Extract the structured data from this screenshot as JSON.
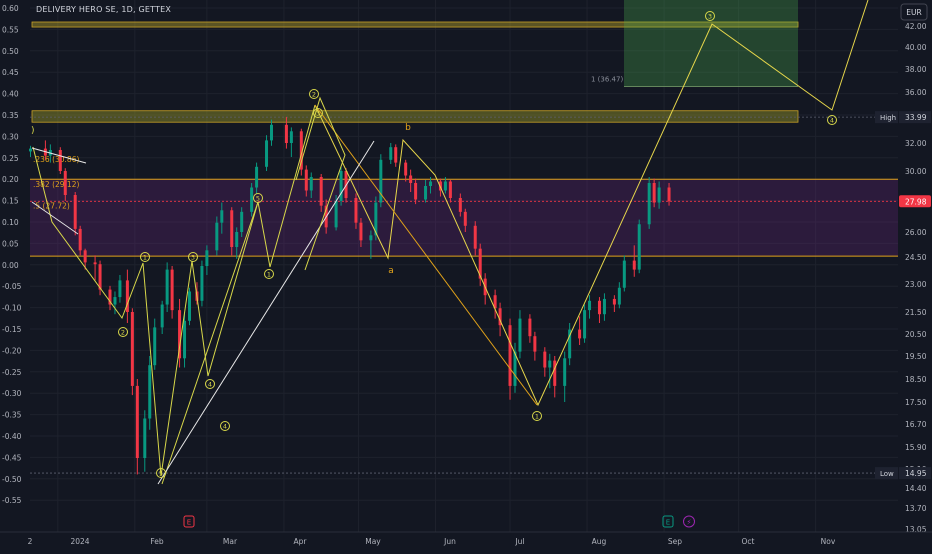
{
  "header": {
    "title": "DELIVERY HERO SE, 1D, GETTEX"
  },
  "axis": {
    "currency": "EUR",
    "left_ticks": [
      "0.60",
      "0.55",
      "0.50",
      "0.45",
      "0.40",
      "0.35",
      "0.30",
      "0.25",
      "0.20",
      "0.15",
      "0.10",
      "0.05",
      "0.00",
      "-0.05",
      "-0.10",
      "-0.15",
      "-0.20",
      "-0.25",
      "-0.30",
      "-0.35",
      "-0.40",
      "-0.45",
      "-0.50",
      "-0.55"
    ],
    "right_ticks": [
      "42.00",
      "40.00",
      "38.00",
      "36.00",
      "34.00",
      "32.00",
      "30.00",
      "28.00",
      "26.00",
      "24.50",
      "23.00",
      "21.50",
      "20.50",
      "19.50",
      "18.50",
      "17.50",
      "16.70",
      "15.90",
      "15.10",
      "14.40",
      "13.70",
      "13.05"
    ],
    "x_ticks": [
      "2",
      "2024",
      "Feb",
      "Mar",
      "Apr",
      "May",
      "Jun",
      "Jul",
      "Aug",
      "Sep",
      "Oct",
      "Nov"
    ]
  },
  "markers": {
    "high": {
      "label": "High",
      "value": "33.99"
    },
    "low": {
      "label": "Low",
      "value": "14.95"
    },
    "last": {
      "value": "27.98"
    }
  },
  "fib_labels": [
    ".236 (30.86)",
    ".382 (29.12)",
    ".5 (27.72)"
  ],
  "target_label": "1 (36.47)",
  "wave_labels": {
    "circled": [
      "1",
      "2",
      "3",
      "4",
      "5",
      "1",
      "2",
      "3",
      "4",
      "5",
      "1",
      "3",
      "4",
      "5",
      "2",
      "3",
      "4"
    ],
    "letters": [
      "b",
      "a",
      ")"
    ]
  },
  "event_icons": [
    "E",
    "E",
    "⚡"
  ],
  "chart_data": {
    "type": "candlestick",
    "title": "DELIVERY HERO SE, 1D, GETTEX",
    "currency": "EUR",
    "x_range": [
      "2023-12-20",
      "2024-11-10"
    ],
    "y_range": [
      13.0,
      43.5
    ],
    "grid": true,
    "candles": [
      [
        "2023-12-21",
        31.4,
        31.8,
        31.0,
        31.6
      ],
      [
        "2023-12-27",
        31.6,
        32.2,
        30.8,
        31.1
      ],
      [
        "2023-12-29",
        31.1,
        31.9,
        30.6,
        31.5
      ],
      [
        "2024-01-02",
        31.5,
        31.7,
        29.8,
        30.0
      ],
      [
        "2024-01-04",
        30.0,
        30.2,
        28.0,
        28.4
      ],
      [
        "2024-01-08",
        28.4,
        28.6,
        25.8,
        26.2
      ],
      [
        "2024-01-10",
        26.2,
        26.4,
        24.6,
        24.9
      ],
      [
        "2024-01-12",
        24.9,
        25.0,
        23.8,
        24.2
      ],
      [
        "2024-01-16",
        24.2,
        24.6,
        23.2,
        24.1
      ],
      [
        "2024-01-18",
        24.1,
        24.3,
        22.4,
        22.7
      ],
      [
        "2024-01-22",
        22.7,
        22.9,
        21.6,
        21.9
      ],
      [
        "2024-01-24",
        21.9,
        22.6,
        21.4,
        22.3
      ],
      [
        "2024-01-26",
        22.3,
        23.5,
        22.0,
        23.2
      ],
      [
        "2024-01-29",
        23.2,
        23.8,
        21.0,
        21.5
      ],
      [
        "2024-01-31",
        21.5,
        21.7,
        17.8,
        18.2
      ],
      [
        "2024-02-02",
        18.2,
        18.5,
        14.9,
        15.5
      ],
      [
        "2024-02-05",
        15.5,
        17.2,
        15.0,
        16.9
      ],
      [
        "2024-02-07",
        16.9,
        19.5,
        16.5,
        19.1
      ],
      [
        "2024-02-09",
        19.1,
        21.2,
        18.9,
        20.8
      ],
      [
        "2024-02-12",
        20.8,
        22.1,
        20.5,
        21.9
      ],
      [
        "2024-02-14",
        21.9,
        24.2,
        21.5,
        23.8
      ],
      [
        "2024-02-16",
        23.8,
        24.0,
        21.2,
        21.6
      ],
      [
        "2024-02-19",
        21.6,
        22.2,
        19.0,
        19.4
      ],
      [
        "2024-02-21",
        19.4,
        21.5,
        19.0,
        21.1
      ],
      [
        "2024-02-23",
        21.1,
        22.8,
        20.9,
        22.6
      ],
      [
        "2024-02-26",
        22.6,
        23.1,
        21.9,
        22.1
      ],
      [
        "2024-02-28",
        22.1,
        24.3,
        21.8,
        24.0
      ],
      [
        "2024-03-01",
        24.0,
        25.2,
        23.5,
        24.9
      ],
      [
        "2024-03-05",
        24.9,
        27.0,
        24.6,
        26.6
      ],
      [
        "2024-03-07",
        26.6,
        27.9,
        25.9,
        27.4
      ],
      [
        "2024-03-11",
        27.4,
        27.6,
        24.6,
        25.1
      ],
      [
        "2024-03-13",
        25.1,
        26.3,
        24.4,
        26.0
      ],
      [
        "2024-03-15",
        26.0,
        27.6,
        25.7,
        27.3
      ],
      [
        "2024-03-19",
        27.3,
        29.2,
        27.0,
        28.9
      ],
      [
        "2024-03-21",
        28.9,
        30.6,
        28.5,
        30.3
      ],
      [
        "2024-03-25",
        30.3,
        32.6,
        30.0,
        32.2
      ],
      [
        "2024-03-27",
        32.2,
        33.8,
        31.8,
        33.4
      ],
      [
        "2024-04-02",
        33.4,
        34.0,
        31.6,
        32.0
      ],
      [
        "2024-04-04",
        32.0,
        33.2,
        31.0,
        32.9
      ],
      [
        "2024-04-08",
        32.9,
        33.1,
        29.7,
        30.1
      ],
      [
        "2024-04-10",
        30.1,
        30.4,
        28.3,
        28.7
      ],
      [
        "2024-04-12",
        28.7,
        29.9,
        28.2,
        29.6
      ],
      [
        "2024-04-16",
        29.6,
        29.8,
        27.3,
        27.7
      ],
      [
        "2024-04-18",
        27.7,
        28.1,
        25.9,
        26.3
      ],
      [
        "2024-04-22",
        26.3,
        28.4,
        26.1,
        28.0
      ],
      [
        "2024-04-24",
        28.0,
        30.3,
        27.7,
        30.0
      ],
      [
        "2024-04-26",
        30.0,
        30.2,
        27.9,
        28.2
      ],
      [
        "2024-04-30",
        28.2,
        28.5,
        26.2,
        26.6
      ],
      [
        "2024-05-02",
        26.6,
        26.9,
        25.1,
        25.5
      ],
      [
        "2024-05-06",
        25.5,
        26.1,
        24.4,
        25.8
      ],
      [
        "2024-05-08",
        25.8,
        28.3,
        25.5,
        27.9
      ],
      [
        "2024-05-10",
        27.9,
        31.2,
        27.6,
        30.8
      ],
      [
        "2024-05-14",
        30.8,
        32.0,
        30.5,
        31.7
      ],
      [
        "2024-05-16",
        31.7,
        31.9,
        30.3,
        30.6
      ],
      [
        "2024-05-20",
        30.6,
        30.8,
        29.3,
        29.7
      ],
      [
        "2024-05-22",
        29.7,
        30.1,
        28.6,
        29.2
      ],
      [
        "2024-05-24",
        29.2,
        29.5,
        27.8,
        28.1
      ],
      [
        "2024-05-28",
        28.1,
        29.4,
        27.9,
        29.0
      ],
      [
        "2024-05-30",
        29.0,
        29.6,
        28.5,
        29.3
      ],
      [
        "2024-06-03",
        29.3,
        29.5,
        28.3,
        28.7
      ],
      [
        "2024-06-05",
        28.7,
        29.6,
        28.5,
        29.3
      ],
      [
        "2024-06-07",
        29.3,
        29.4,
        27.9,
        28.2
      ],
      [
        "2024-06-11",
        28.2,
        28.5,
        27.0,
        27.3
      ],
      [
        "2024-06-13",
        27.3,
        27.5,
        26.0,
        26.4
      ],
      [
        "2024-06-17",
        26.4,
        26.7,
        24.6,
        25.0
      ],
      [
        "2024-06-19",
        25.0,
        25.3,
        22.9,
        23.3
      ],
      [
        "2024-06-21",
        23.3,
        23.6,
        21.9,
        22.4
      ],
      [
        "2024-06-25",
        22.4,
        22.7,
        21.2,
        21.7
      ],
      [
        "2024-06-27",
        21.7,
        22.0,
        20.4,
        20.9
      ],
      [
        "2024-07-01",
        20.9,
        21.2,
        17.6,
        18.2
      ],
      [
        "2024-07-03",
        18.2,
        20.1,
        17.9,
        19.7
      ],
      [
        "2024-07-05",
        19.7,
        21.6,
        19.4,
        21.2
      ],
      [
        "2024-07-09",
        21.2,
        21.4,
        20.1,
        20.4
      ],
      [
        "2024-07-11",
        20.4,
        20.6,
        19.3,
        19.7
      ],
      [
        "2024-07-15",
        19.7,
        19.9,
        18.6,
        19.0
      ],
      [
        "2024-07-17",
        19.0,
        19.6,
        18.1,
        19.3
      ],
      [
        "2024-07-19",
        19.3,
        19.5,
        17.7,
        18.2
      ],
      [
        "2024-07-23",
        18.2,
        19.7,
        17.5,
        19.4
      ],
      [
        "2024-07-25",
        19.4,
        21.0,
        19.1,
        20.7
      ],
      [
        "2024-07-29",
        20.7,
        21.3,
        20.0,
        20.3
      ],
      [
        "2024-07-31",
        20.3,
        21.9,
        20.1,
        21.6
      ],
      [
        "2024-08-02",
        21.6,
        22.4,
        21.2,
        22.1
      ],
      [
        "2024-08-06",
        22.1,
        22.3,
        21.0,
        21.4
      ],
      [
        "2024-08-08",
        21.4,
        22.5,
        21.1,
        22.2
      ],
      [
        "2024-08-12",
        22.2,
        22.4,
        21.5,
        21.9
      ],
      [
        "2024-08-14",
        21.9,
        23.1,
        21.7,
        22.8
      ],
      [
        "2024-08-16",
        22.8,
        24.6,
        22.6,
        24.3
      ],
      [
        "2024-08-20",
        24.3,
        25.2,
        23.4,
        23.8
      ],
      [
        "2024-08-22",
        23.8,
        26.8,
        23.6,
        26.5
      ],
      [
        "2024-08-26",
        26.5,
        29.6,
        26.2,
        29.2
      ],
      [
        "2024-08-28",
        29.2,
        29.5,
        27.6,
        27.9
      ],
      [
        "2024-08-30",
        27.9,
        29.3,
        27.5,
        28.9
      ],
      [
        "2024-09-03",
        28.9,
        29.2,
        27.7,
        27.98
      ]
    ],
    "fib_levels": [
      {
        "label": ".236",
        "value": 30.86
      },
      {
        "label": ".382",
        "value": 29.12
      },
      {
        "label": ".5",
        "value": 27.72
      }
    ],
    "target": {
      "label": "1",
      "value": 36.47
    },
    "zones": {
      "resistance_top": [
        42.3,
        41.9
      ],
      "resistance_high": [
        34.5,
        33.6
      ],
      "purple_band": [
        29.45,
        24.55
      ]
    },
    "high": 33.99,
    "low": 14.95,
    "last": 27.98
  }
}
